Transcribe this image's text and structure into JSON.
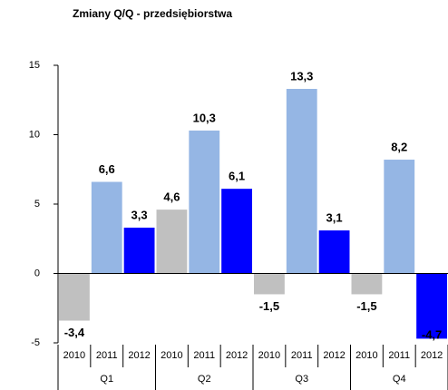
{
  "chart_data": {
    "type": "bar",
    "title": "Zmiany Q/Q - przedsiębiorstwa",
    "categories": [
      "Q1",
      "Q2",
      "Q3",
      "Q4"
    ],
    "series": [
      {
        "name": "2010",
        "color": "#c0c0c0",
        "values": [
          -3.4,
          4.6,
          -1.5,
          -1.5
        ],
        "value_labels": [
          "-3,4",
          "4,6",
          "-1,5",
          "-1,5"
        ]
      },
      {
        "name": "2011",
        "color": "#95b6e4",
        "values": [
          6.6,
          10.3,
          13.3,
          8.2
        ],
        "value_labels": [
          "6,6",
          "10,3",
          "13,3",
          "8,2"
        ]
      },
      {
        "name": "2012",
        "color": "#0000ff",
        "values": [
          3.3,
          6.1,
          3.1,
          -4.7
        ],
        "value_labels": [
          "3,3",
          "6,1",
          "3,1",
          "-4,7"
        ]
      }
    ],
    "ylim": [
      -5,
      15
    ],
    "yticks": [
      -5,
      0,
      5,
      10,
      15
    ],
    "grid": false
  }
}
